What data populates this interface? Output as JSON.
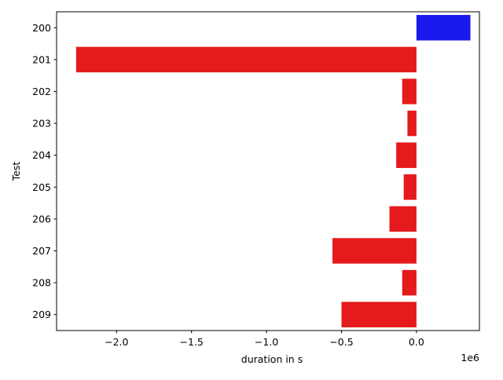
{
  "chart_data": {
    "type": "bar",
    "orientation": "horizontal",
    "categories": [
      "200",
      "201",
      "202",
      "203",
      "204",
      "205",
      "206",
      "207",
      "208",
      "209"
    ],
    "values": [
      360000,
      -2270000,
      -95000,
      -60000,
      -135000,
      -85000,
      -180000,
      -560000,
      -95000,
      -500000
    ],
    "xlabel": "duration in s",
    "ylabel": "Test",
    "x_scale_label": "1e6",
    "xlim": [
      -2.4,
      0.42
    ],
    "x_ticks": [
      -2.0,
      -1.5,
      -1.0,
      -0.5,
      0.0
    ],
    "x_tick_labels": [
      "−2.0",
      "−1.5",
      "−1.0",
      "−0.5",
      "0.0"
    ],
    "x_scale_factor": 1000000,
    "grid": false,
    "colors": {
      "positive": "#1a1aef",
      "negative": "#e41a1c"
    }
  }
}
